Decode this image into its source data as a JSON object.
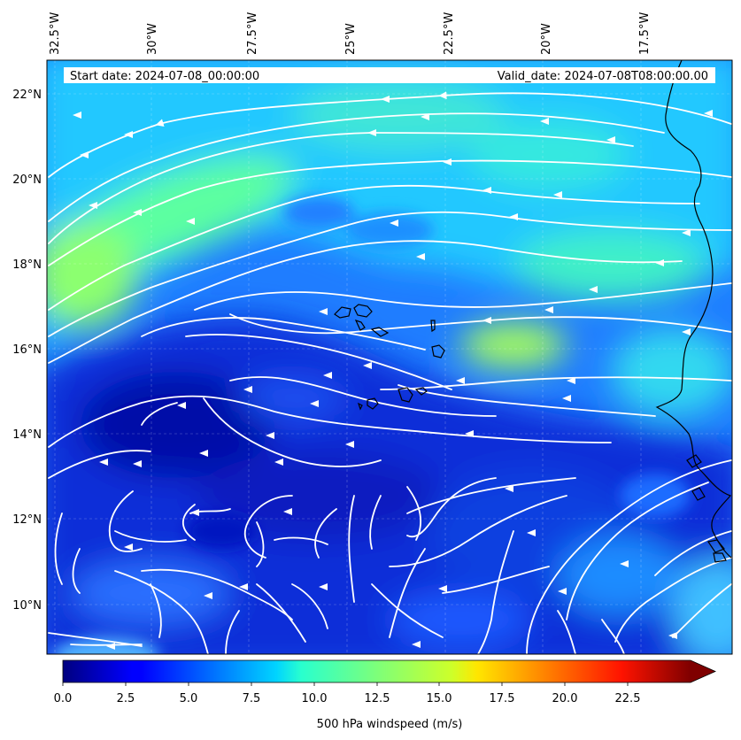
{
  "header": {
    "start_date": "Start date: 2024-07-08_00:00:00",
    "valid_date": "Valid_date: 2024-07-08T08:00:00.00"
  },
  "map": {
    "lon_labels": [
      "32.5°W",
      "30°W",
      "27.5°W",
      "25°W",
      "22.5°W",
      "20°W",
      "17.5°W"
    ],
    "lat_labels": [
      "22°N",
      "20°N",
      "18°N",
      "16°N",
      "14°N",
      "12°N",
      "10°N"
    ],
    "streamline_color": "#ffffff",
    "coastline_color": "#000000"
  },
  "colorbar": {
    "label": "500 hPa windspeed (m/s)",
    "ticks": [
      "0.0",
      "2.5",
      "5.0",
      "7.5",
      "10.0",
      "12.5",
      "15.0",
      "17.5",
      "20.0",
      "22.5"
    ],
    "vmin": 0,
    "vmax": 25,
    "extend": "max",
    "colormap": "jet"
  }
}
